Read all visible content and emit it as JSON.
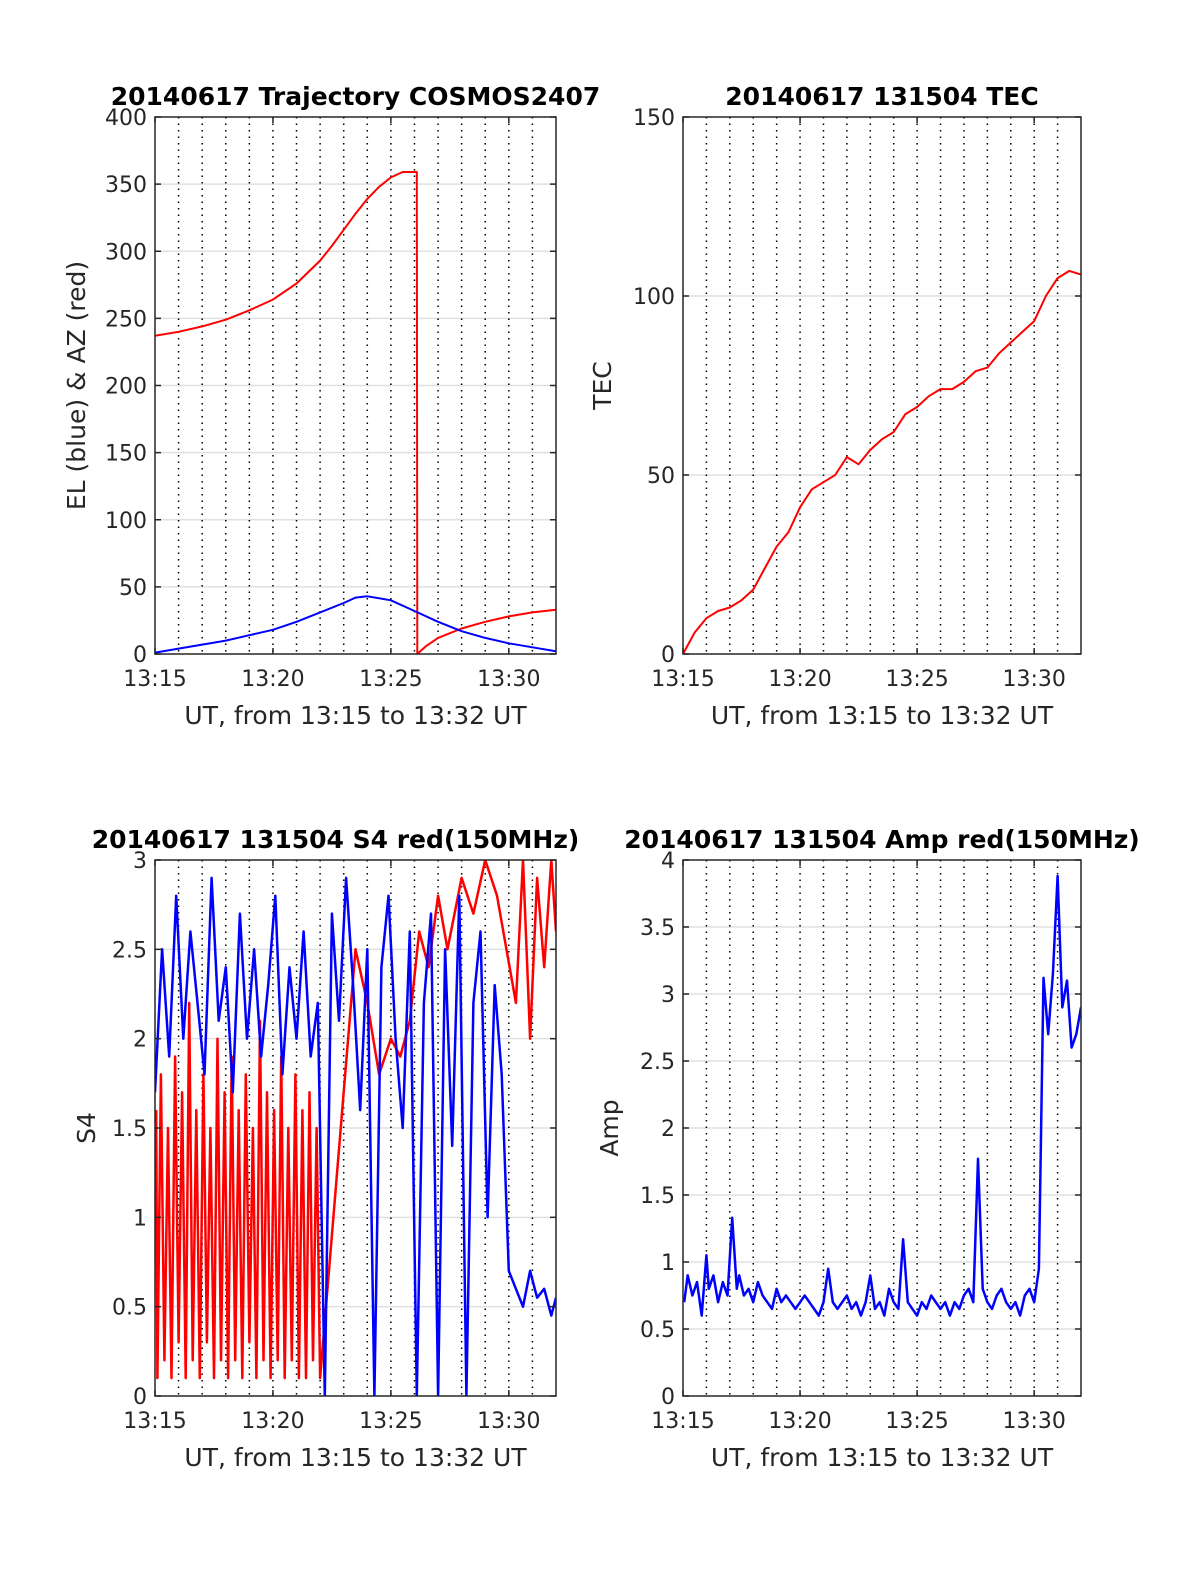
{
  "chart_data": [
    {
      "type": "line",
      "title": "20140617 Trajectory COSMOS2407",
      "xlabel": "UT, from 13:15 to 13:32 UT",
      "ylabel": "EL (blue) & AZ (red)",
      "xlim": [
        0,
        17
      ],
      "ylim": [
        0,
        400
      ],
      "xticks": [
        0,
        5,
        10,
        15
      ],
      "xtick_labels": [
        "13:15",
        "13:20",
        "13:25",
        "13:30"
      ],
      "yticks": [
        0,
        50,
        100,
        150,
        200,
        250,
        300,
        350,
        400
      ],
      "ytick_labels": [
        "0",
        "50",
        "100",
        "150",
        "200",
        "250",
        "300",
        "350",
        "400"
      ],
      "grid": true,
      "series": [
        {
          "color": "#ff0000",
          "x": [
            0,
            1,
            2,
            3,
            4,
            5,
            6,
            7,
            7.5,
            8,
            8.5,
            9,
            9.5,
            10,
            10.5,
            11,
            11.1,
            11.12,
            11.5,
            12,
            13,
            14,
            15,
            16,
            17
          ],
          "y": [
            237,
            240,
            244,
            249,
            256,
            264,
            276,
            293,
            304,
            316,
            328,
            339,
            348,
            355,
            359,
            359,
            359,
            0,
            6,
            12,
            19,
            24,
            28,
            31,
            33
          ]
        },
        {
          "color": "#0000ff",
          "x": [
            0,
            1,
            2,
            3,
            4,
            5,
            6,
            7,
            8,
            8.5,
            9,
            10,
            11,
            12,
            13,
            14,
            15,
            16,
            17
          ],
          "y": [
            1,
            4,
            7,
            10,
            14,
            18,
            24,
            31,
            38,
            42,
            43,
            40,
            32,
            24,
            17,
            12,
            8,
            5,
            2
          ]
        }
      ]
    },
    {
      "type": "line",
      "title": "20140617 131504 TEC",
      "xlabel": "UT, from 13:15 to 13:32 UT",
      "ylabel": "TEC",
      "xlim": [
        0,
        17
      ],
      "ylim": [
        0,
        150
      ],
      "xticks": [
        0,
        5,
        10,
        15
      ],
      "xtick_labels": [
        "13:15",
        "13:20",
        "13:25",
        "13:30"
      ],
      "yticks": [
        0,
        50,
        100,
        150
      ],
      "ytick_labels": [
        "0",
        "50",
        "100",
        "150"
      ],
      "grid": true,
      "series": [
        {
          "color": "#ff0000",
          "x": [
            0,
            0.5,
            1,
            1.5,
            2,
            2.5,
            3,
            3.5,
            4,
            4.5,
            5,
            5.5,
            6,
            6.5,
            7,
            7.5,
            8,
            8.5,
            9,
            9.5,
            10,
            10.5,
            11,
            11.5,
            12,
            12.5,
            13,
            13.5,
            14,
            14.5,
            15,
            15.5,
            16,
            16.5,
            17
          ],
          "y": [
            0,
            6,
            10,
            12,
            13,
            15,
            18,
            24,
            30,
            34,
            41,
            46,
            48,
            50,
            55,
            53,
            57,
            60,
            62,
            67,
            69,
            72,
            74,
            74,
            76,
            79,
            80,
            84,
            87,
            90,
            93,
            100,
            105,
            107,
            106
          ]
        }
      ]
    },
    {
      "type": "line",
      "title": "20140617 131504 S4 red(150MHz)",
      "xlabel": "UT, from 13:15 to 13:32 UT",
      "ylabel": "S4",
      "xlim": [
        0,
        17
      ],
      "ylim": [
        0,
        3
      ],
      "xticks": [
        0,
        5,
        10,
        15
      ],
      "xtick_labels": [
        "13:15",
        "13:20",
        "13:25",
        "13:30"
      ],
      "yticks": [
        0,
        0.5,
        1,
        1.5,
        2,
        2.5,
        3
      ],
      "ytick_labels": [
        "0",
        "0.5",
        "1",
        "1.5",
        "2",
        "2.5",
        "3"
      ],
      "grid": true,
      "series": [
        {
          "color": "#ff0000",
          "x": [
            0.05,
            0.1,
            0.25,
            0.4,
            0.55,
            0.7,
            0.85,
            1.0,
            1.15,
            1.3,
            1.45,
            1.6,
            1.75,
            1.9,
            2.05,
            2.2,
            2.35,
            2.5,
            2.65,
            2.8,
            2.95,
            3.1,
            3.25,
            3.4,
            3.55,
            3.7,
            3.85,
            4.0,
            4.15,
            4.3,
            4.45,
            4.6,
            4.75,
            4.9,
            5.05,
            5.2,
            5.35,
            5.5,
            5.65,
            5.8,
            5.95,
            6.1,
            6.25,
            6.4,
            6.55,
            6.7,
            6.85,
            7.0,
            8.5,
            9.0,
            9.5,
            10.0,
            10.4,
            10.8,
            11.2,
            11.6,
            12.0,
            12.4,
            13.0,
            13.5,
            14.0,
            14.5,
            15.3,
            15.6,
            15.9,
            16.2,
            16.5,
            16.8,
            17.0
          ],
          "y": [
            1.6,
            0.1,
            1.8,
            0.2,
            1.5,
            0.1,
            1.9,
            0.3,
            1.7,
            0.1,
            2.2,
            0.2,
            1.6,
            0.1,
            1.8,
            0.3,
            1.5,
            0.1,
            2.0,
            0.2,
            1.7,
            0.1,
            1.9,
            0.2,
            1.6,
            0.1,
            1.8,
            0.3,
            1.5,
            0.1,
            2.1,
            0.2,
            1.7,
            0.1,
            1.6,
            0.2,
            1.9,
            0.1,
            1.5,
            0.2,
            1.8,
            0.1,
            1.6,
            0.1,
            1.7,
            0.2,
            1.5,
            0.1,
            2.5,
            2.2,
            1.8,
            2.0,
            1.9,
            2.1,
            2.6,
            2.4,
            2.8,
            2.5,
            2.9,
            2.7,
            3.0,
            2.8,
            2.2,
            3.0,
            2.0,
            2.9,
            2.4,
            3.0,
            2.6
          ]
        },
        {
          "color": "#0000ff",
          "x": [
            0,
            0.3,
            0.6,
            0.9,
            1.2,
            1.5,
            1.8,
            2.1,
            2.4,
            2.7,
            3.0,
            3.3,
            3.6,
            3.9,
            4.2,
            4.5,
            4.8,
            5.1,
            5.4,
            5.7,
            6.0,
            6.3,
            6.6,
            6.9,
            7.2,
            7.5,
            7.8,
            8.1,
            8.4,
            8.7,
            9.0,
            9.3,
            9.6,
            9.9,
            10.2,
            10.5,
            10.8,
            11.1,
            11.4,
            11.7,
            12.0,
            12.3,
            12.6,
            12.9,
            13.2,
            13.5,
            13.8,
            14.1,
            14.4,
            14.7,
            15.0,
            15.3,
            15.6,
            15.9,
            16.2,
            16.5,
            16.8,
            17.0
          ],
          "y": [
            1.7,
            2.5,
            1.9,
            2.8,
            2.0,
            2.6,
            2.2,
            1.8,
            2.9,
            2.1,
            2.4,
            1.7,
            2.7,
            2.0,
            2.5,
            1.9,
            2.3,
            2.8,
            1.8,
            2.4,
            2.0,
            2.6,
            1.9,
            2.2,
            0.0,
            2.7,
            2.1,
            2.9,
            2.3,
            1.6,
            2.5,
            0.0,
            2.4,
            2.8,
            2.0,
            1.5,
            2.6,
            0.0,
            2.2,
            2.7,
            0.0,
            2.5,
            1.4,
            2.8,
            0.0,
            2.2,
            2.6,
            1.0,
            2.3,
            1.8,
            0.7,
            0.6,
            0.5,
            0.7,
            0.55,
            0.6,
            0.45,
            0.55
          ]
        }
      ]
    },
    {
      "type": "line",
      "title": "20140617 131504 Amp red(150MHz)",
      "xlabel": "UT, from 13:15 to 13:32 UT",
      "ylabel": "Amp",
      "xlim": [
        0,
        17
      ],
      "ylim": [
        0,
        4
      ],
      "xticks": [
        0,
        5,
        10,
        15
      ],
      "xtick_labels": [
        "13:15",
        "13:20",
        "13:25",
        "13:30"
      ],
      "yticks": [
        0,
        0.5,
        1,
        1.5,
        2,
        2.5,
        3,
        3.5,
        4
      ],
      "ytick_labels": [
        "0",
        "0.5",
        "1",
        "1.5",
        "2",
        "2.5",
        "3",
        "3.5",
        "4"
      ],
      "grid": true,
      "series": [
        {
          "color": "#0000ff",
          "x": [
            0.05,
            0.2,
            0.4,
            0.6,
            0.8,
            1.0,
            1.1,
            1.3,
            1.5,
            1.7,
            1.9,
            2.1,
            2.3,
            2.4,
            2.6,
            2.8,
            3.0,
            3.2,
            3.4,
            3.6,
            3.8,
            4.0,
            4.2,
            4.4,
            4.6,
            4.8,
            5.0,
            5.2,
            5.4,
            5.6,
            5.8,
            6.0,
            6.2,
            6.4,
            6.6,
            6.8,
            7.0,
            7.2,
            7.4,
            7.6,
            7.8,
            8.0,
            8.2,
            8.4,
            8.6,
            8.8,
            9.0,
            9.2,
            9.4,
            9.6,
            9.8,
            10.0,
            10.2,
            10.4,
            10.6,
            10.8,
            11.0,
            11.2,
            11.4,
            11.6,
            11.8,
            12.0,
            12.2,
            12.4,
            12.6,
            12.8,
            13.0,
            13.2,
            13.4,
            13.6,
            13.8,
            14.0,
            14.2,
            14.4,
            14.6,
            14.8,
            15.0,
            15.2,
            15.4,
            15.6,
            15.8,
            16.0,
            16.2,
            16.4,
            16.6,
            16.8,
            17.0
          ],
          "y": [
            0.7,
            0.9,
            0.75,
            0.85,
            0.6,
            1.05,
            0.8,
            0.9,
            0.7,
            0.85,
            0.75,
            1.33,
            0.8,
            0.9,
            0.75,
            0.8,
            0.7,
            0.85,
            0.75,
            0.7,
            0.65,
            0.8,
            0.7,
            0.75,
            0.7,
            0.65,
            0.7,
            0.75,
            0.7,
            0.65,
            0.6,
            0.7,
            0.95,
            0.7,
            0.65,
            0.7,
            0.75,
            0.65,
            0.7,
            0.6,
            0.7,
            0.9,
            0.65,
            0.7,
            0.6,
            0.8,
            0.7,
            0.65,
            1.17,
            0.7,
            0.65,
            0.6,
            0.7,
            0.65,
            0.75,
            0.7,
            0.65,
            0.7,
            0.6,
            0.7,
            0.65,
            0.75,
            0.8,
            0.7,
            1.77,
            0.8,
            0.7,
            0.65,
            0.75,
            0.8,
            0.7,
            0.65,
            0.7,
            0.6,
            0.75,
            0.8,
            0.7,
            0.95,
            3.12,
            2.7,
            3.15,
            3.88,
            2.9,
            3.1,
            2.6,
            2.7,
            2.9
          ]
        }
      ]
    }
  ]
}
